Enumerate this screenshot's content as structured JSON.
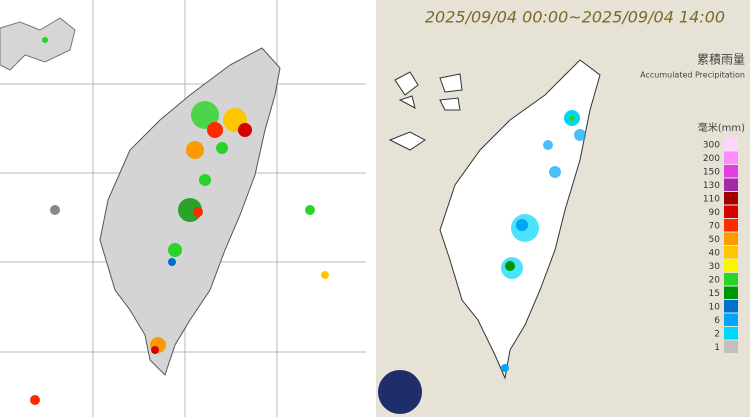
{
  "title": "2025/09/04 00:00~2025/09/04 14:00",
  "legend": {
    "title_zh": "累積雨量",
    "title_en": "Accumulated Precipitation",
    "unit": "毫米(mm)",
    "items": [
      {
        "label": 300,
        "color": "#fdd6fd"
      },
      {
        "label": 200,
        "color": "#fd8cfd"
      },
      {
        "label": 150,
        "color": "#e13fe1"
      },
      {
        "label": 130,
        "color": "#a42aa4"
      },
      {
        "label": 110,
        "color": "#a10000"
      },
      {
        "label": 90,
        "color": "#d50000"
      },
      {
        "label": 70,
        "color": "#fd2b00"
      },
      {
        "label": 50,
        "color": "#fd9a00"
      },
      {
        "label": 40,
        "color": "#fdc600"
      },
      {
        "label": 30,
        "color": "#f7f700"
      },
      {
        "label": 20,
        "color": "#27d427"
      },
      {
        "label": 15,
        "color": "#009600"
      },
      {
        "label": 10,
        "color": "#0070cf"
      },
      {
        "label": 6,
        "color": "#00a4f8"
      },
      {
        "label": 2,
        "color": "#00d6f8"
      },
      {
        "label": 1,
        "color": "#c0c0c0"
      }
    ]
  }
}
